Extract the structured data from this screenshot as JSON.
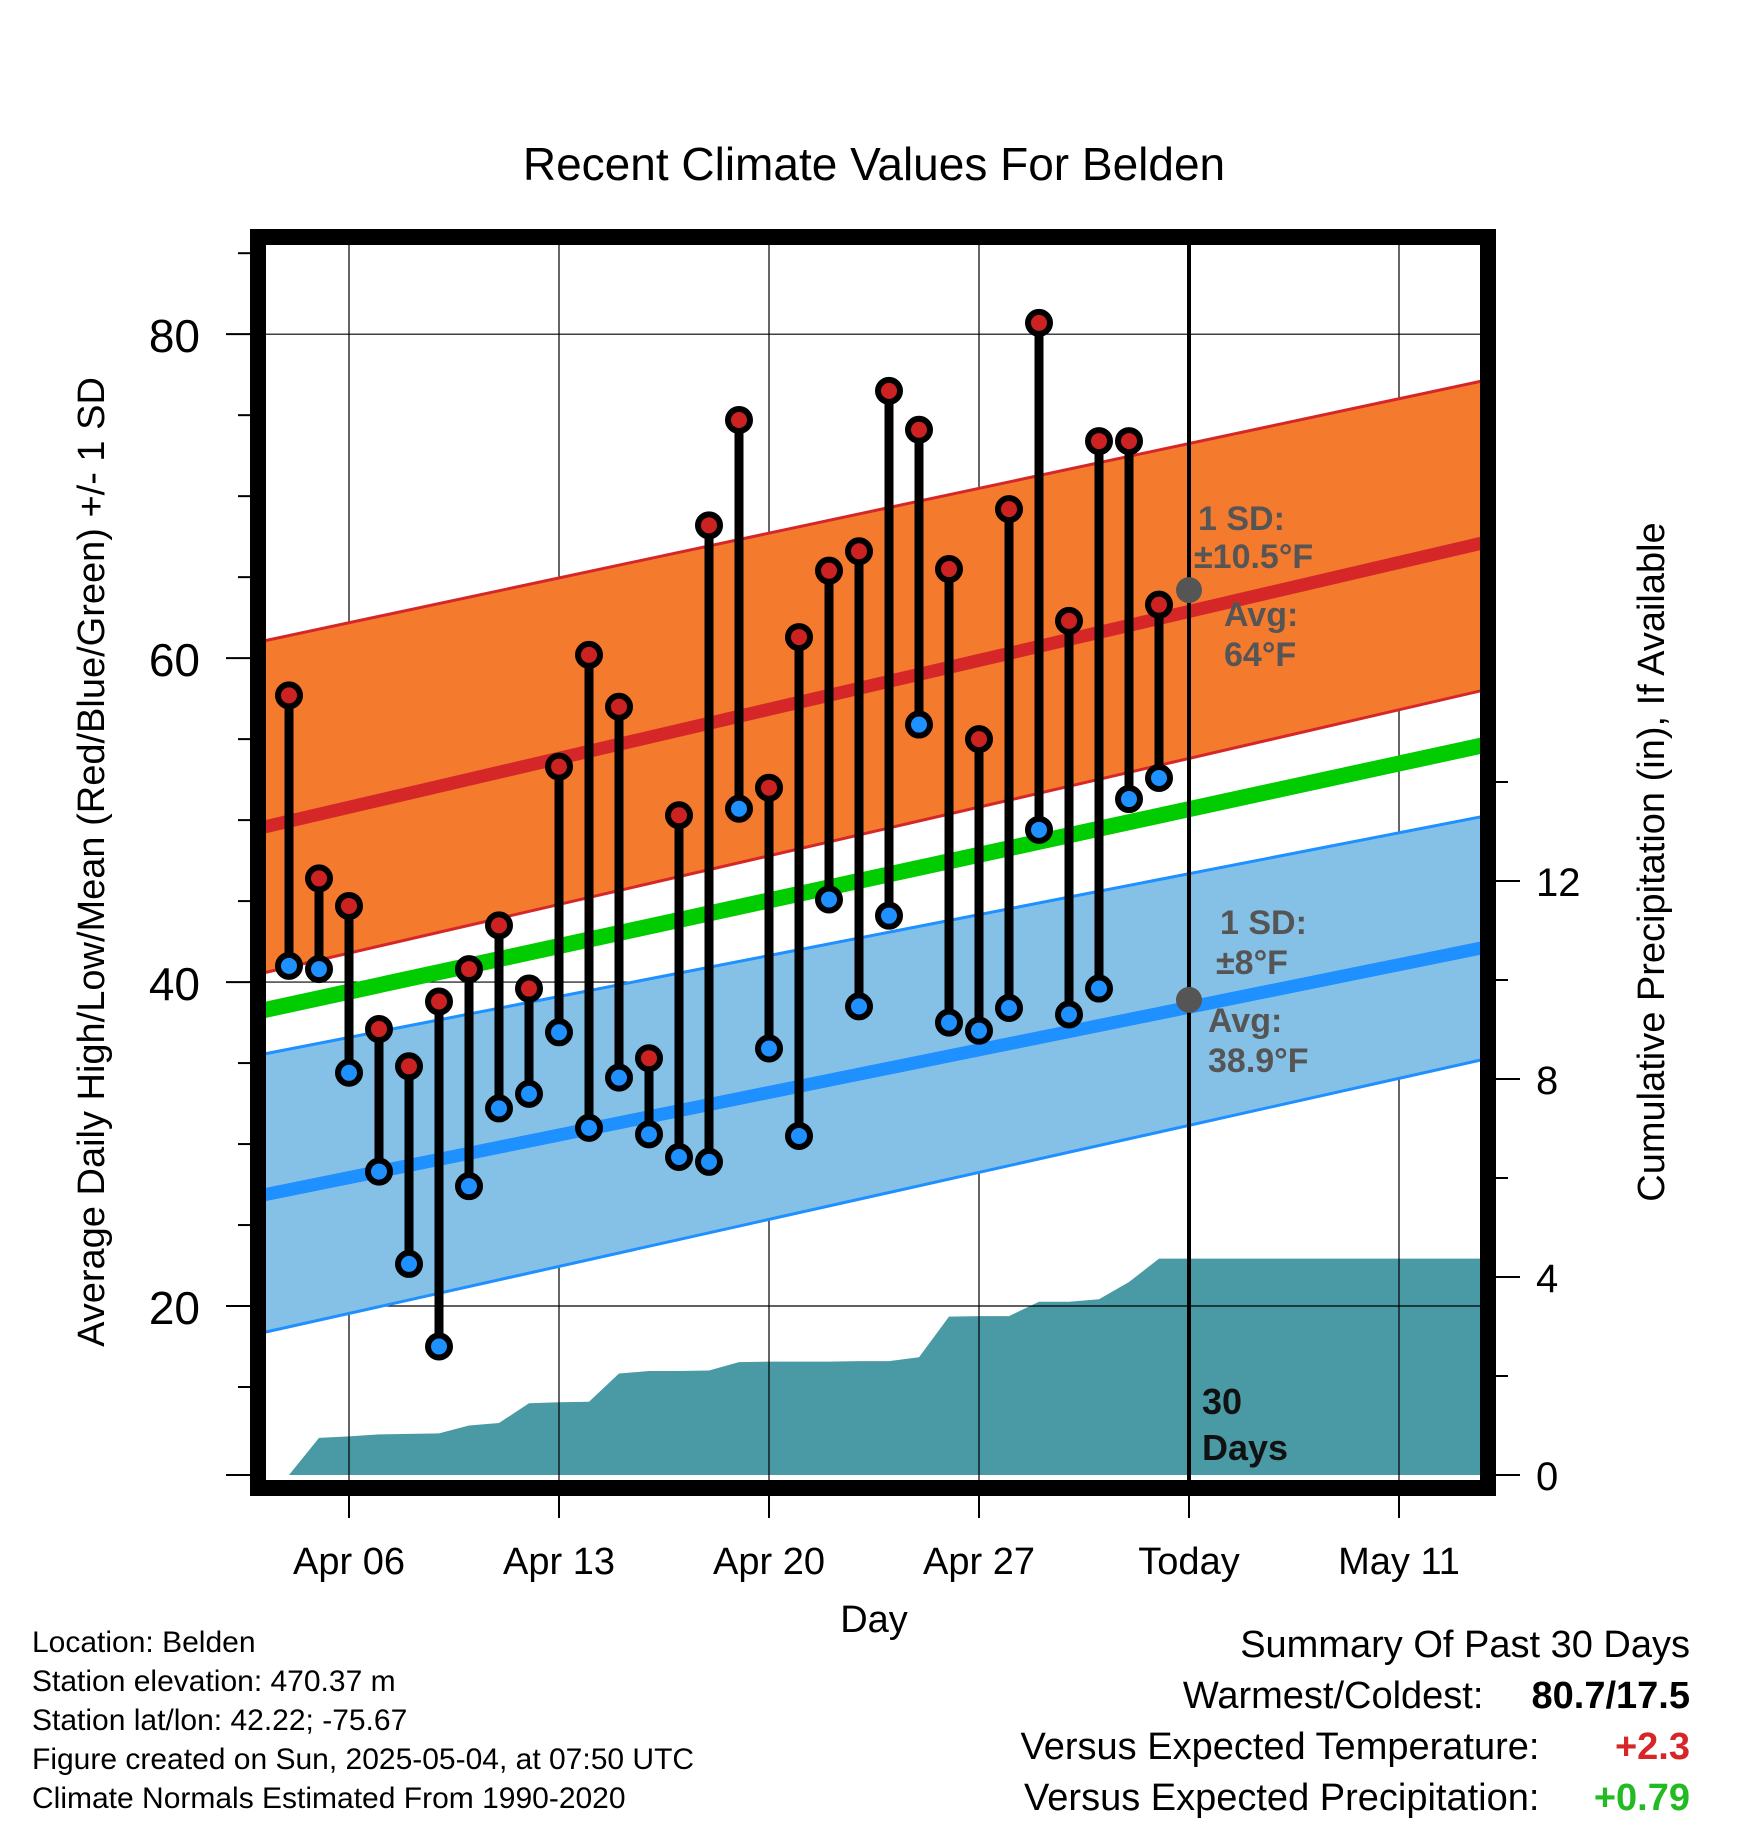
{
  "colors": {
    "high_band": "#F47A2E",
    "high_avg": "#D62728",
    "low_band": "#85C1E6",
    "low_avg": "#1E90FF",
    "mean_line": "#00CC00",
    "precip": "#4A9AA5",
    "high_marker": "#CC2222",
    "low_marker": "#1E90FF",
    "annotation": "#555555",
    "positive_temp": "#D62728",
    "positive_precip": "#22BB22"
  },
  "chart_data": {
    "type": "line",
    "title": "Recent Climate Values For Belden",
    "xlabel": "Day",
    "ylabel_left": "Average Daily High/Low/Mean (Red/Blue/Green) +/- 1 SD",
    "ylabel_right": "Cumulative Precipitation (in), If Available",
    "x_ticks": [
      "Apr 06",
      "Apr 13",
      "Apr 20",
      "Apr 27",
      "Today",
      "May 11"
    ],
    "x_tick_dates": [
      "2025-04-06",
      "2025-04-13",
      "2025-04-20",
      "2025-04-27",
      "2025-05-04",
      "2025-05-11"
    ],
    "ylim_left": [
      10,
      86
    ],
    "yticks_left": [
      20,
      40,
      60,
      80
    ],
    "ylim_right": [
      0,
      18
    ],
    "yticks_right": [
      0,
      4,
      8,
      12
    ],
    "grid": true,
    "normals": {
      "dates": [
        "2025-04-03",
        "2025-05-14"
      ],
      "high_avg": [
        49.5,
        67.2
      ],
      "high_upper": [
        61.0,
        77.2
      ],
      "high_lower": [
        40.5,
        58.1
      ],
      "low_avg": [
        26.8,
        42.2
      ],
      "low_upper": [
        35.5,
        50.3
      ],
      "low_lower": [
        18.3,
        35.3
      ],
      "mean_avg": [
        38.2,
        54.7
      ]
    },
    "daily": {
      "dates": [
        "2025-04-04",
        "2025-04-05",
        "2025-04-06",
        "2025-04-07",
        "2025-04-08",
        "2025-04-09",
        "2025-04-10",
        "2025-04-11",
        "2025-04-12",
        "2025-04-13",
        "2025-04-14",
        "2025-04-15",
        "2025-04-16",
        "2025-04-17",
        "2025-04-18",
        "2025-04-19",
        "2025-04-20",
        "2025-04-21",
        "2025-04-22",
        "2025-04-23",
        "2025-04-24",
        "2025-04-25",
        "2025-04-26",
        "2025-04-27",
        "2025-04-28",
        "2025-04-29",
        "2025-04-30",
        "2025-05-01",
        "2025-05-02",
        "2025-05-03"
      ],
      "high": [
        57.7,
        46.4,
        44.7,
        37.1,
        34.8,
        38.8,
        40.8,
        43.5,
        39.6,
        53.3,
        60.2,
        57.0,
        35.3,
        50.3,
        68.2,
        74.7,
        52.0,
        61.3,
        65.4,
        66.6,
        76.5,
        74.1,
        65.5,
        55.0,
        69.2,
        80.7,
        62.3,
        73.4,
        73.4,
        63.3
      ],
      "low": [
        41.0,
        40.8,
        34.4,
        28.3,
        22.6,
        17.5,
        27.4,
        32.2,
        33.1,
        36.9,
        31.0,
        34.1,
        30.6,
        29.2,
        28.9,
        50.7,
        35.9,
        30.5,
        45.1,
        38.5,
        44.1,
        55.9,
        37.5,
        37.0,
        38.4,
        49.4,
        38.0,
        39.6,
        51.3,
        52.6
      ]
    },
    "precip": {
      "dates": [
        "2025-04-04",
        "2025-04-05",
        "2025-04-06",
        "2025-04-07",
        "2025-04-08",
        "2025-04-09",
        "2025-04-10",
        "2025-04-11",
        "2025-04-12",
        "2025-04-13",
        "2025-04-14",
        "2025-04-15",
        "2025-04-16",
        "2025-04-17",
        "2025-04-18",
        "2025-04-19",
        "2025-04-20",
        "2025-04-21",
        "2025-04-22",
        "2025-04-23",
        "2025-04-24",
        "2025-04-25",
        "2025-04-26",
        "2025-04-27",
        "2025-04-28",
        "2025-04-29",
        "2025-04-30",
        "2025-05-01",
        "2025-05-02",
        "2025-05-03",
        "2025-05-04",
        "2025-05-14"
      ],
      "cumulative": [
        0.0,
        0.75,
        0.78,
        0.82,
        0.83,
        0.84,
        1.0,
        1.05,
        1.45,
        1.47,
        1.48,
        2.05,
        2.1,
        2.1,
        2.11,
        2.28,
        2.29,
        2.29,
        2.29,
        2.3,
        2.3,
        2.38,
        3.2,
        3.21,
        3.21,
        3.5,
        3.5,
        3.55,
        3.9,
        4.37,
        4.37,
        4.37
      ]
    },
    "annotations": {
      "high": {
        "sd_label": "1 SD:",
        "sd_value": "±10.5°F",
        "avg_label": "Avg:",
        "avg_value": "64°F",
        "point_value": 64.2
      },
      "low": {
        "sd_label": "1 SD:",
        "sd_value": "±8°F",
        "avg_label": "Avg:",
        "avg_value": "38.9°F",
        "point_value": 38.9
      },
      "days_label_1": "30",
      "days_label_2": "Days"
    }
  },
  "station": {
    "location": "Location: Belden",
    "elevation": "Station elevation: 470.37 m",
    "latlon": "Station lat/lon: 42.22; -75.67",
    "created": "Figure created on Sun, 2025-05-04, at 07:50 UTC",
    "normals": "Climate Normals Estimated From 1990-2020"
  },
  "summary": {
    "title": "Summary Of Past 30 Days",
    "warmest_label": "Warmest/Coldest:",
    "warmest_value": "80.7/17.5",
    "temp_label": "Versus Expected Temperature:",
    "temp_value": "+2.3",
    "precip_label": "Versus Expected Precipitation:",
    "precip_value": "+0.79"
  }
}
